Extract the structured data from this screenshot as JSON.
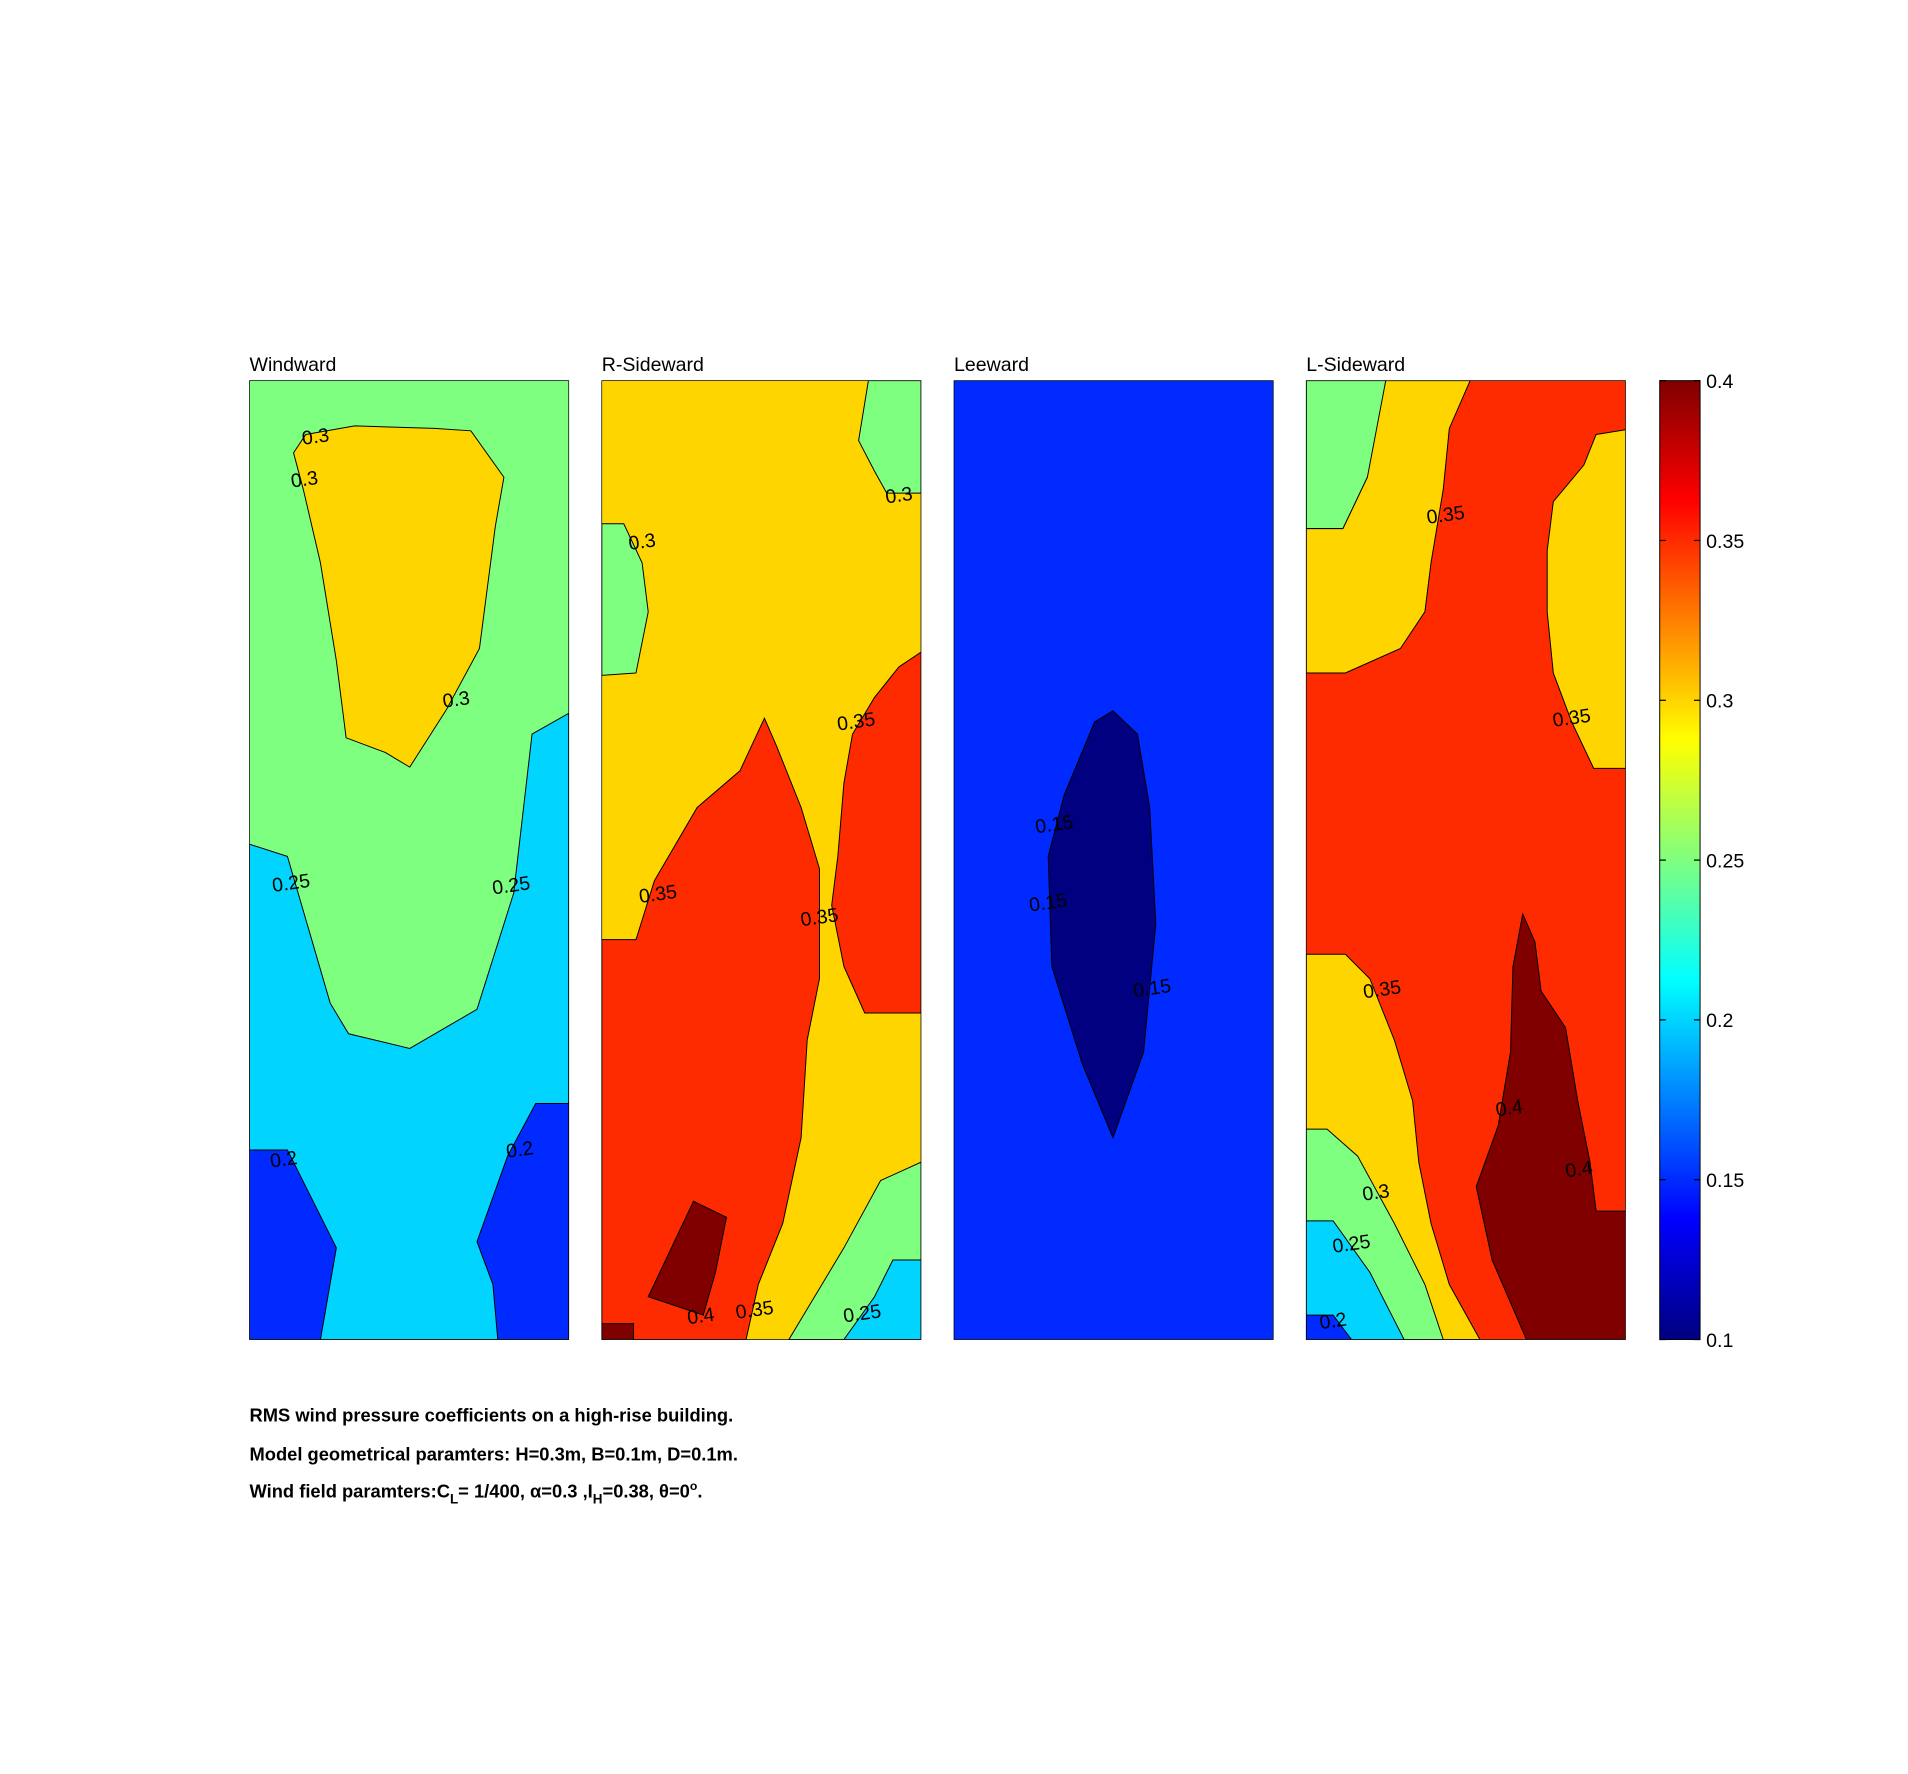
{
  "chart_data": {
    "type": "contour",
    "colormap": "jet",
    "ylim": [
      0.1,
      0.4
    ],
    "yticks": [
      0.1,
      0.15,
      0.2,
      0.25,
      0.3,
      0.35,
      0.4
    ],
    "panels": [
      {
        "title": "Windward",
        "contour_labels": [
          0.3,
          0.3,
          0.3,
          0.25,
          0.25,
          0.2,
          0.2
        ]
      },
      {
        "title": "R-Sideward",
        "contour_labels": [
          0.3,
          0.3,
          0.35,
          0.35,
          0.35,
          0.35,
          0.4,
          0.25
        ]
      },
      {
        "title": "Leeward",
        "contour_labels": [
          0.15,
          0.15,
          0.15
        ]
      },
      {
        "title": "L-Sideward",
        "contour_labels": [
          0.35,
          0.35,
          0.35,
          0.4,
          0.4,
          0.3,
          0.25,
          0.2
        ]
      }
    ],
    "caption": [
      "RMS wind pressure coefficients on a high-rise building.",
      "Model geometrical paramters: H=0.3m, B=0.1m, D=0.1m.",
      [
        "Wind field paramters:C",
        "L",
        "= 1/400, α=0.3 ,I",
        "H",
        "=0.38, θ=0",
        "o",
        "."
      ]
    ]
  }
}
